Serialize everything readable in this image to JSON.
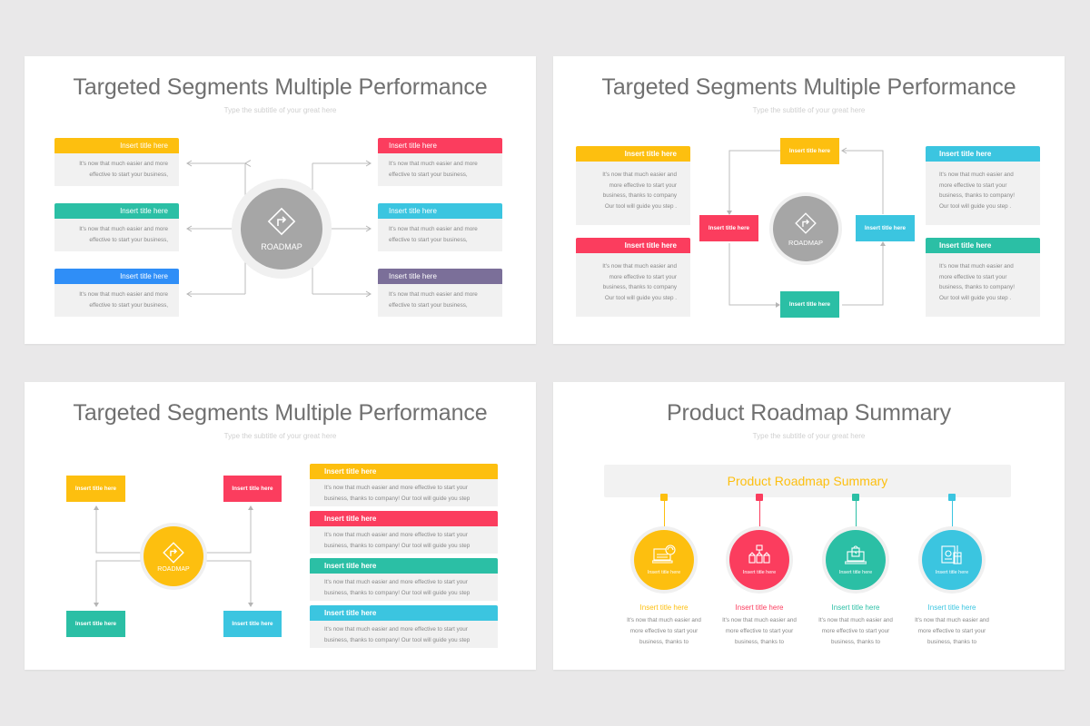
{
  "colors": {
    "yellow": "#fdbf0f",
    "red": "#fb3d5e",
    "teal": "#2bbfa5",
    "cyan": "#3bc5e0",
    "blue": "#2f8ef7",
    "purple": "#7b6f99",
    "grey": "#a6a6a6"
  },
  "slide1": {
    "title": "Targeted Segments Multiple Performance",
    "subtitle": "Type the subtitle of your great here",
    "center_label": "ROADMAP",
    "center_icon": "roadmap-turn-icon",
    "items": [
      {
        "title": "Insert title here",
        "body": "It's now that much easier and more\neffective to start your business,",
        "color": "#fdbf0f"
      },
      {
        "title": "Insert title here",
        "body": "It's now that much easier and more\neffective to start your business,",
        "color": "#2bbfa5"
      },
      {
        "title": "Insert title here",
        "body": "It's now that much easier and more\neffective to start your business,",
        "color": "#2f8ef7"
      },
      {
        "title": "Insert title here",
        "body": "It's now that much easier and more\neffective to start your business,",
        "color": "#fb3d5e"
      },
      {
        "title": "Insert title here",
        "body": "It's now that much easier and more\neffective to start your business,",
        "color": "#3bc5e0"
      },
      {
        "title": "Insert title here",
        "body": "It's now that much easier and more\neffective to start your business,",
        "color": "#7b6f99"
      }
    ]
  },
  "slide2": {
    "title": "Targeted Segments Multiple Performance",
    "subtitle": "Type the subtitle of your great here",
    "center_label": "ROADMAP",
    "cards": [
      {
        "title": "Insert title here",
        "body": "It's now that much easier and\nmore effective to start your\nbusiness, thanks to company\nOur tool will guide you step ."
      },
      {
        "title": "Insert title here",
        "body": "It's now that much easier and\nmore effective to start your\nbusiness, thanks to company\nOur tool will guide you step ."
      },
      {
        "title": "Insert title here",
        "body": "It's now that much easier and\nmore effective to start your\nbusiness, thanks to company!\nOur tool will guide you step ."
      },
      {
        "title": "Insert title here",
        "body": "It's now that much easier and\nmore effective to start your\nbusiness, thanks to company!\nOur tool will guide you step ."
      }
    ],
    "steps": [
      "Insert title here",
      "Insert title here",
      "Insert title here",
      "Insert title here"
    ]
  },
  "slide3": {
    "title": "Targeted Segments Multiple Performance",
    "subtitle": "Type the subtitle of your great here",
    "center_label": "ROADMAP",
    "boxes": [
      "Insert title here",
      "Insert title here",
      "Insert title here",
      "Insert title here"
    ],
    "items": [
      {
        "title": "Insert title here",
        "body": "It's now that much easier and more effective to start your\nbusiness, thanks to company! Our tool will guide you step"
      },
      {
        "title": "Insert title here",
        "body": "It's now that much easier and more effective to start your\nbusiness, thanks to company! Our tool will guide you step"
      },
      {
        "title": "Insert title here",
        "body": "It's now that much easier and more effective to start your\nbusiness, thanks to company! Our tool will guide you step"
      },
      {
        "title": "Insert title here",
        "body": "It's now that much easier and more effective to start your\nbusiness, thanks to company! Our tool will guide you step"
      }
    ]
  },
  "slide4": {
    "title": "Product Roadmap Summary",
    "subtitle": "Type the subtitle of your great here",
    "banner": "Product Roadmap Summary",
    "steps": [
      {
        "circle_label": "Insert title here",
        "title": "Insert title here",
        "body": "It's now that much easier and\nmore effective to start your\nbusiness, thanks to",
        "icon": "laptop-sync-icon"
      },
      {
        "circle_label": "Insert title here",
        "title": "Insert title here",
        "body": "It's now that much easier and\nmore effective to start your\nbusiness, thanks to",
        "icon": "market-stalls-icon"
      },
      {
        "circle_label": "Insert title here",
        "title": "Insert title here",
        "body": "It's now that much easier and\nmore effective to start your\nbusiness, thanks to",
        "icon": "shopping-laptop-icon"
      },
      {
        "circle_label": "Insert title here",
        "title": "Insert title here",
        "body": "It's now that much easier and\nmore effective to start your\nbusiness, thanks to",
        "icon": "finance-documents-icon"
      }
    ]
  }
}
